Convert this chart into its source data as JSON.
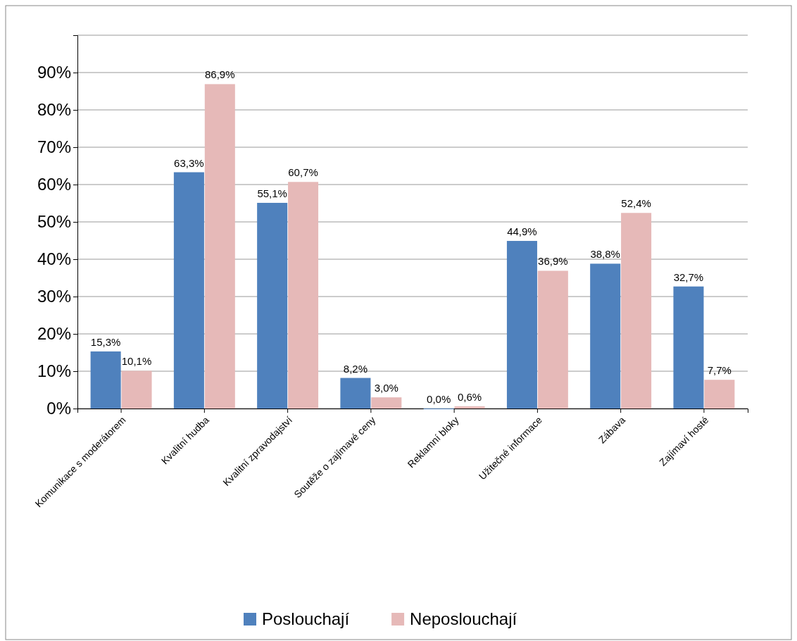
{
  "chart_data": {
    "type": "bar",
    "categories": [
      "Komunikace s moderátorem",
      "Kvalitní hudba",
      "Kvalitní zpravodajství",
      "Soutěže o zajímavé ceny",
      "Reklamní bloky",
      "Užitečné informace",
      "Zábava",
      "Zajímaví hosté"
    ],
    "series": [
      {
        "name": "Poslouchají",
        "color": "#4f81bd",
        "values": [
          15.3,
          63.3,
          55.1,
          8.2,
          0.0,
          44.9,
          38.8,
          32.7
        ],
        "value_labels": [
          "15,3%",
          "63,3%",
          "55,1%",
          "8,2%",
          "0,0%",
          "44,9%",
          "38,8%",
          "32,7%"
        ]
      },
      {
        "name": "Neposlouchají",
        "color": "#e6b9b8",
        "values": [
          10.1,
          86.9,
          60.7,
          3.0,
          0.6,
          36.9,
          52.4,
          7.7
        ],
        "value_labels": [
          "10,1%",
          "86,9%",
          "60,7%",
          "3,0%",
          "0,6%",
          "36,9%",
          "52,4%",
          "7,7%"
        ]
      }
    ],
    "ylim": [
      0,
      100
    ],
    "yticks": [
      {
        "value": 0,
        "label": "0%"
      },
      {
        "value": 10,
        "label": "10%"
      },
      {
        "value": 20,
        "label": "20%"
      },
      {
        "value": 30,
        "label": "30%"
      },
      {
        "value": 40,
        "label": "40%"
      },
      {
        "value": 50,
        "label": "50%"
      },
      {
        "value": 60,
        "label": "60%"
      },
      {
        "value": 70,
        "label": "70%"
      },
      {
        "value": 80,
        "label": "80%"
      },
      {
        "value": 90,
        "label": "90%"
      },
      {
        "value": 100,
        "label": null
      }
    ],
    "grid": "y",
    "legend": "bottom"
  }
}
